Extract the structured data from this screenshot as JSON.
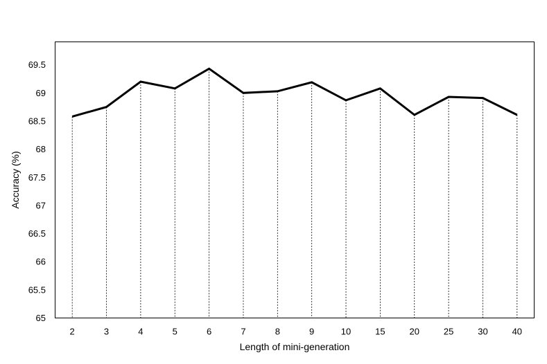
{
  "chart_data": {
    "type": "line",
    "title": "",
    "xlabel": "Length of mini-generation",
    "ylabel": "Accuracy (%)",
    "categories": [
      "2",
      "3",
      "4",
      "5",
      "6",
      "7",
      "8",
      "9",
      "10",
      "15",
      "20",
      "25",
      "30",
      "40"
    ],
    "series": [
      {
        "values": [
          68.58,
          68.75,
          69.2,
          69.08,
          69.43,
          69.0,
          69.03,
          69.19,
          68.87,
          69.08,
          68.61,
          68.93,
          68.91,
          68.61
        ]
      }
    ],
    "ylim": [
      65,
      69.5
    ],
    "yticks": [
      "65",
      "65.5",
      "66",
      "66.5",
      "67",
      "67.5",
      "68",
      "68.5",
      "69",
      "69.5"
    ],
    "grid": false,
    "drop_lines": true,
    "line_color": "#000000"
  }
}
